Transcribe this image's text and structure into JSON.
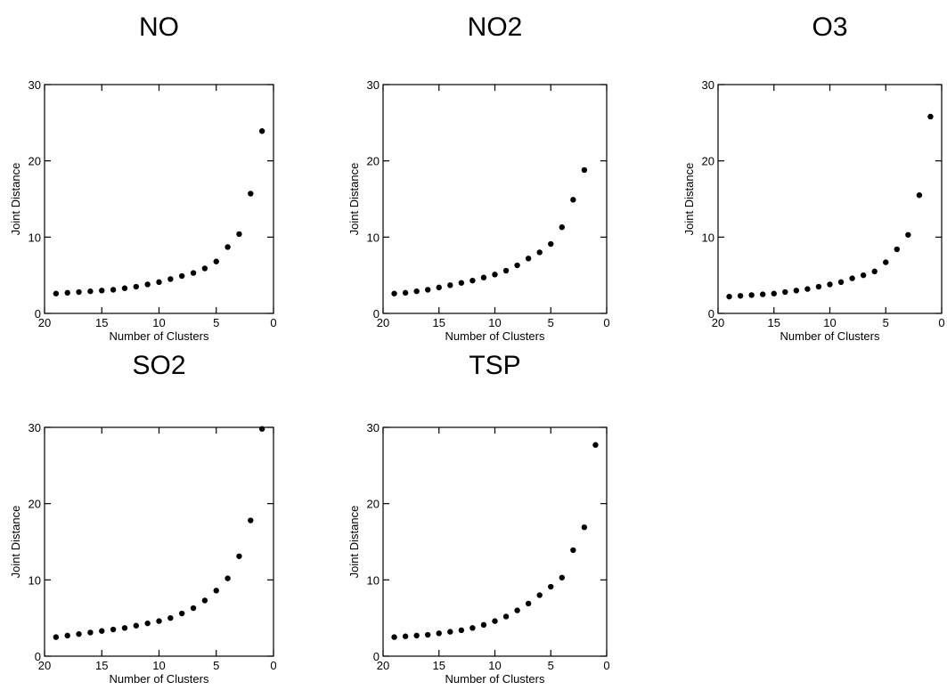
{
  "chart_data": [
    {
      "type": "scatter",
      "title": "NO",
      "xlabel": "Number of Clusters",
      "ylabel": "Joint Distance",
      "xlim": [
        20,
        0
      ],
      "ylim": [
        0,
        30
      ],
      "xticks": [
        "20",
        "15",
        "10",
        "5",
        "0"
      ],
      "yticks": [
        "0",
        "10",
        "20",
        "30"
      ],
      "grid": false,
      "x": [
        19,
        18,
        17,
        16,
        15,
        14,
        13,
        12,
        11,
        10,
        9,
        8,
        7,
        6,
        5,
        4,
        3,
        2,
        1
      ],
      "y": [
        2.6,
        2.7,
        2.8,
        2.9,
        3.0,
        3.1,
        3.3,
        3.5,
        3.8,
        4.1,
        4.5,
        4.9,
        5.3,
        5.9,
        6.8,
        8.7,
        10.4,
        15.7,
        23.9
      ]
    },
    {
      "type": "scatter",
      "title": "NO2",
      "xlabel": "Number of Clusters",
      "ylabel": "Joint Distance",
      "xlim": [
        20,
        0
      ],
      "ylim": [
        0,
        30
      ],
      "xticks": [
        "20",
        "15",
        "10",
        "5",
        "0"
      ],
      "yticks": [
        "0",
        "10",
        "20",
        "30"
      ],
      "grid": false,
      "x": [
        19,
        18,
        17,
        16,
        15,
        14,
        13,
        12,
        11,
        10,
        9,
        8,
        7,
        6,
        5,
        4,
        3,
        2
      ],
      "y": [
        2.6,
        2.7,
        2.9,
        3.1,
        3.4,
        3.7,
        4.0,
        4.3,
        4.7,
        5.1,
        5.6,
        6.3,
        7.2,
        8.0,
        9.1,
        11.3,
        14.9,
        18.8
      ]
    },
    {
      "type": "scatter",
      "title": "O3",
      "xlabel": "Number of Clusters",
      "ylabel": "Joint Distance",
      "xlim": [
        20,
        0
      ],
      "ylim": [
        0,
        30
      ],
      "xticks": [
        "20",
        "15",
        "10",
        "5",
        "0"
      ],
      "yticks": [
        "0",
        "10",
        "20",
        "30"
      ],
      "grid": false,
      "x": [
        19,
        18,
        17,
        16,
        15,
        14,
        13,
        12,
        11,
        10,
        9,
        8,
        7,
        6,
        5,
        4,
        3,
        2,
        1
      ],
      "y": [
        2.2,
        2.3,
        2.4,
        2.5,
        2.6,
        2.8,
        3.0,
        3.2,
        3.5,
        3.8,
        4.1,
        4.6,
        5.0,
        5.5,
        6.7,
        8.4,
        10.3,
        15.5,
        25.8
      ]
    },
    {
      "type": "scatter",
      "title": "SO2",
      "xlabel": "Number of Clusters",
      "ylabel": "Joint Distance",
      "xlim": [
        20,
        0
      ],
      "ylim": [
        0,
        30
      ],
      "xticks": [
        "20",
        "15",
        "10",
        "5",
        "0"
      ],
      "yticks": [
        "0",
        "10",
        "20",
        "30"
      ],
      "grid": false,
      "x": [
        19,
        18,
        17,
        16,
        15,
        14,
        13,
        12,
        11,
        10,
        9,
        8,
        7,
        6,
        5,
        4,
        3,
        2,
        1
      ],
      "y": [
        2.5,
        2.7,
        2.9,
        3.1,
        3.3,
        3.5,
        3.7,
        4.0,
        4.3,
        4.6,
        5.0,
        5.6,
        6.3,
        7.3,
        8.6,
        10.2,
        13.1,
        17.8,
        29.8
      ]
    },
    {
      "type": "scatter",
      "title": "TSP",
      "xlabel": "Number of Clusters",
      "ylabel": "Joint Distance",
      "xlim": [
        20,
        0
      ],
      "ylim": [
        0,
        30
      ],
      "xticks": [
        "20",
        "15",
        "10",
        "5",
        "0"
      ],
      "yticks": [
        "0",
        "10",
        "20",
        "30"
      ],
      "grid": false,
      "x": [
        19,
        18,
        17,
        16,
        15,
        14,
        13,
        12,
        11,
        10,
        9,
        8,
        7,
        6,
        5,
        4,
        3,
        2,
        1
      ],
      "y": [
        2.5,
        2.6,
        2.7,
        2.8,
        3.0,
        3.2,
        3.4,
        3.7,
        4.1,
        4.6,
        5.2,
        6.0,
        6.9,
        8.0,
        9.1,
        10.3,
        13.9,
        16.9,
        27.7
      ]
    }
  ]
}
